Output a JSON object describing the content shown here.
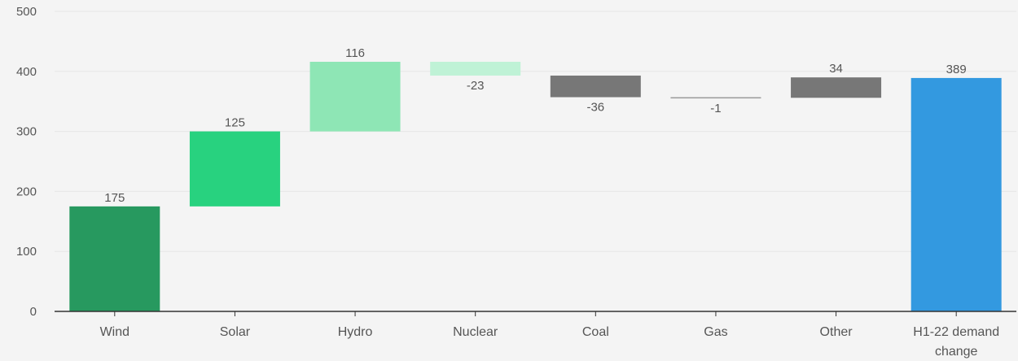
{
  "chart_data": {
    "type": "bar",
    "subtype": "waterfall",
    "title": "",
    "xlabel": "",
    "ylabel": "",
    "ylim": [
      0,
      500
    ],
    "y_ticks": [
      0,
      100,
      200,
      300,
      400,
      500
    ],
    "grid": true,
    "legend": "none",
    "categories": [
      "Wind",
      "Solar",
      "Hydro",
      "Nuclear",
      "Coal",
      "Gas",
      "Other",
      "H1-22 demand change"
    ],
    "bars": [
      {
        "category": "Wind",
        "label": "175",
        "value": 175,
        "start": 0,
        "end": 175,
        "color": "#27995f"
      },
      {
        "category": "Solar",
        "label": "125",
        "value": 125,
        "start": 175,
        "end": 300,
        "color": "#28d27f"
      },
      {
        "category": "Hydro",
        "label": "116",
        "value": 116,
        "start": 300,
        "end": 416,
        "color": "#8ee6b5"
      },
      {
        "category": "Nuclear",
        "label": "-23",
        "value": -23,
        "start": 416,
        "end": 393,
        "color": "#bff2d6"
      },
      {
        "category": "Coal",
        "label": "-36",
        "value": -36,
        "start": 393,
        "end": 357,
        "color": "#777777"
      },
      {
        "category": "Gas",
        "label": "-1",
        "value": -1,
        "start": 357,
        "end": 356,
        "color": "#9a9a9a"
      },
      {
        "category": "Other",
        "label": "34",
        "value": 34,
        "start": 356,
        "end": 390,
        "color": "#777777"
      },
      {
        "category": "H1-22 demand change",
        "label": "389",
        "value": 389,
        "start": 0,
        "end": 389,
        "color": "#3399e0",
        "is_total": true
      }
    ],
    "colors": {
      "gridline": "#e6e6e6",
      "axis": "#333333",
      "text": "#555555",
      "background": "#f4f4f4"
    }
  }
}
